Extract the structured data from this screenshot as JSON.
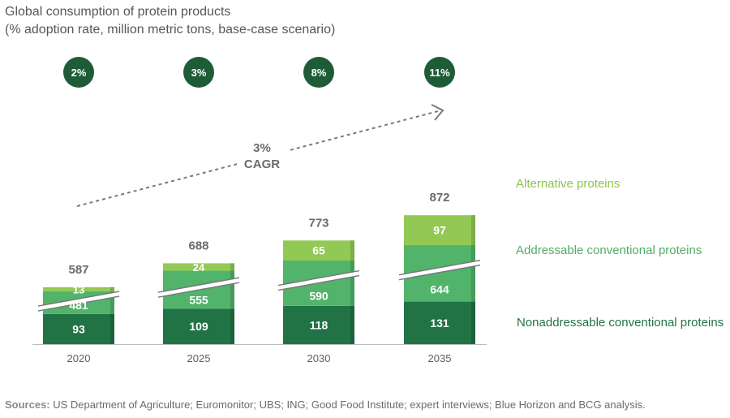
{
  "title_line1": "Global consumption of protein products",
  "title_line2": "(% adoption rate, million metric tons, base-case scenario)",
  "chart_data": {
    "type": "bar",
    "stacked": true,
    "axis_break": true,
    "categories": [
      "2020",
      "2025",
      "2030",
      "2035"
    ],
    "series": [
      {
        "name": "Nonaddressable conventional proteins",
        "values": [
          93,
          109,
          118,
          131
        ],
        "color": "#217346"
      },
      {
        "name": "Addressable conventional proteins",
        "values": [
          481,
          555,
          590,
          644
        ],
        "color": "#52b36b"
      },
      {
        "name": "Alternative proteins",
        "values": [
          13,
          24,
          65,
          97
        ],
        "color": "#92c954"
      }
    ],
    "totals": [
      587,
      688,
      773,
      872
    ],
    "adoption_rates": [
      "2%",
      "3%",
      "8%",
      "11%"
    ],
    "cagr_value": "3%",
    "cagr_label": "CAGR",
    "legend": [
      "Alternative proteins",
      "Addressable conventional proteins",
      "Nonaddressable conventional proteins"
    ],
    "legend_placement": "right"
  },
  "sources_label": "Sources:",
  "sources_text": " US Department of Agriculture; Euromonitor; UBS; ING; Good Food Institute; expert interviews; Blue Horizon and BCG analysis.",
  "colors": {
    "badge": "#1e5c37",
    "alt_legend": "#8cc34f",
    "addr_legend": "#4fad66",
    "nonaddr_legend": "#217346"
  }
}
